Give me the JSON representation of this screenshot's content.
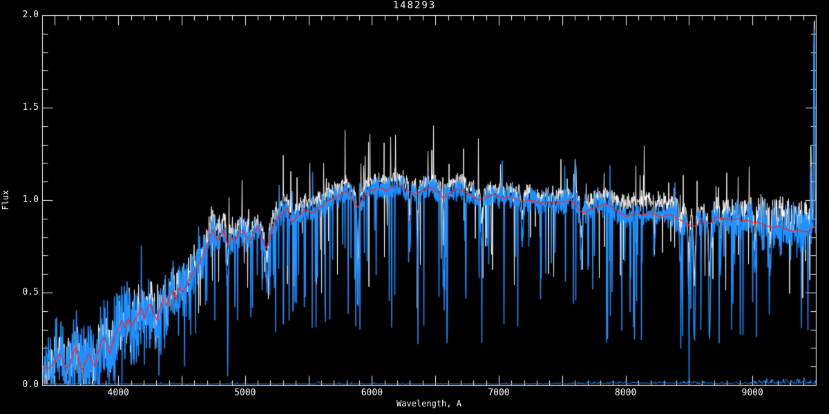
{
  "chart_data": {
    "type": "line",
    "title": "148293",
    "xlabel": "Wavelength, A",
    "ylabel": "Flux",
    "xlim": [
      3400,
      9500
    ],
    "ylim": [
      0.0,
      2.0
    ],
    "grid": false,
    "legend": "none",
    "background_color": "#000000",
    "axis_color": "#ffffff",
    "x_major_tick_step": 500,
    "x_minor_tick_step": 100,
    "y_major_tick_step": 0.5,
    "y_minor_tick_step": 0.1,
    "x_tick_labels": [
      {
        "value": 4000,
        "label": "4000"
      },
      {
        "value": 5000,
        "label": "5000"
      },
      {
        "value": 6000,
        "label": "6000"
      },
      {
        "value": 7000,
        "label": "7000"
      },
      {
        "value": 8000,
        "label": "8000"
      },
      {
        "value": 9000,
        "label": "9000"
      }
    ],
    "y_tick_labels": [
      {
        "value": 0.0,
        "label": "0.0"
      },
      {
        "value": 0.5,
        "label": "0.5"
      },
      {
        "value": 1.0,
        "label": "1.0"
      },
      {
        "value": 1.5,
        "label": "1.5"
      },
      {
        "value": 2.0,
        "label": "2.0"
      }
    ],
    "series": [
      {
        "name": "observed-spectrum",
        "color": "#ffffff",
        "line_width": 1,
        "role": "noisy",
        "seed": 101,
        "continuum_boost_base": 0.035,
        "boosts": [
          [
            8200,
            230,
            0.05
          ],
          [
            9300,
            260,
            0.05
          ],
          [
            4800,
            700,
            0.02
          ]
        ],
        "noise_base": 0.038,
        "noise_extra": [
          [
            3650,
            320,
            0.07
          ],
          [
            4250,
            350,
            0.06
          ],
          [
            9250,
            300,
            0.05
          ]
        ],
        "dip_fraction": 0.5,
        "emission_fraction": 1.15,
        "spike_down_prob": 0.04,
        "spike_down_max": 0.5,
        "spike_up_prob": 0.025,
        "spike_up_max": 0.15
      },
      {
        "name": "smoothed-spectrum",
        "color": "#1e90ff",
        "line_width": 1.5,
        "role": "noisy",
        "seed": 202,
        "continuum_boost_base": 0.0,
        "boosts": [],
        "noise_base": 0.05,
        "noise_extra": [
          [
            3650,
            320,
            0.1
          ],
          [
            4250,
            350,
            0.09
          ],
          [
            9250,
            300,
            0.06
          ]
        ],
        "dip_fraction": 1.0,
        "emission_fraction": 1.0,
        "spike_down_prob": 0.07,
        "spike_down_max": 0.75,
        "spike_up_prob": 0.01,
        "spike_up_max": 0.12
      },
      {
        "name": "sky-noise-spectrum",
        "color": "#1e90ff",
        "line_width": 1,
        "role": "baseline",
        "seed": 303,
        "level": 0.004,
        "bumps": [
          [
            5577,
            5,
            0.012
          ],
          [
            6300,
            5,
            0.007
          ],
          [
            7900,
            300,
            0.01
          ],
          [
            8450,
            200,
            0.012
          ],
          [
            9300,
            260,
            0.022
          ]
        ]
      },
      {
        "name": "template-fit",
        "color": "#ff2222",
        "line_width": 1.3,
        "role": "smooth",
        "points": [
          [
            3405,
            0.08
          ],
          [
            3430,
            0.1
          ],
          [
            3455,
            0.09
          ],
          [
            3480,
            0.11
          ],
          [
            3510,
            0.14
          ],
          [
            3540,
            0.17
          ],
          [
            3565,
            0.13
          ],
          [
            3590,
            0.09
          ],
          [
            3615,
            0.11
          ],
          [
            3640,
            0.16
          ],
          [
            3665,
            0.21
          ],
          [
            3690,
            0.13
          ],
          [
            3715,
            0.08
          ],
          [
            3740,
            0.12
          ],
          [
            3765,
            0.17
          ],
          [
            3790,
            0.13
          ],
          [
            3815,
            0.1
          ],
          [
            3840,
            0.17
          ],
          [
            3865,
            0.23
          ],
          [
            3890,
            0.26
          ],
          [
            3915,
            0.21
          ],
          [
            3933,
            0.17
          ],
          [
            3955,
            0.22
          ],
          [
            3980,
            0.28
          ],
          [
            4005,
            0.31
          ],
          [
            4030,
            0.35
          ],
          [
            4055,
            0.31
          ],
          [
            4080,
            0.36
          ],
          [
            4105,
            0.32
          ],
          [
            4130,
            0.35
          ],
          [
            4155,
            0.38
          ],
          [
            4180,
            0.42
          ],
          [
            4205,
            0.36
          ],
          [
            4230,
            0.41
          ],
          [
            4255,
            0.44
          ],
          [
            4280,
            0.39
          ],
          [
            4305,
            0.35
          ],
          [
            4330,
            0.42
          ],
          [
            4355,
            0.47
          ],
          [
            4380,
            0.43
          ],
          [
            4405,
            0.47
          ],
          [
            4430,
            0.51
          ],
          [
            4455,
            0.46
          ],
          [
            4480,
            0.53
          ],
          [
            4510,
            0.5
          ],
          [
            4540,
            0.55
          ],
          [
            4570,
            0.58
          ],
          [
            4600,
            0.62
          ],
          [
            4640,
            0.66
          ],
          [
            4680,
            0.72
          ],
          [
            4703,
            0.76
          ],
          [
            4720,
            0.8
          ],
          [
            4740,
            0.84
          ],
          [
            4760,
            0.82
          ],
          [
            4780,
            0.78
          ],
          [
            4800,
            0.8
          ],
          [
            4830,
            0.84
          ],
          [
            4861,
            0.76
          ],
          [
            4890,
            0.8
          ],
          [
            4920,
            0.78
          ],
          [
            4950,
            0.82
          ],
          [
            4980,
            0.84
          ],
          [
            5010,
            0.8
          ],
          [
            5040,
            0.78
          ],
          [
            5070,
            0.82
          ],
          [
            5100,
            0.86
          ],
          [
            5130,
            0.8
          ],
          [
            5164,
            0.74
          ],
          [
            5200,
            0.8
          ],
          [
            5230,
            0.88
          ],
          [
            5260,
            0.91
          ],
          [
            5290,
            0.92
          ],
          [
            5330,
            0.96
          ],
          [
            5370,
            0.88
          ],
          [
            5400,
            0.9
          ],
          [
            5430,
            0.92
          ],
          [
            5460,
            0.94
          ],
          [
            5490,
            0.95
          ],
          [
            5520,
            0.93
          ],
          [
            5550,
            0.94
          ],
          [
            5580,
            0.96
          ],
          [
            5610,
            0.97
          ],
          [
            5640,
            0.99
          ],
          [
            5670,
            1.0
          ],
          [
            5700,
            1.01
          ],
          [
            5730,
            1.02
          ],
          [
            5770,
            1.04
          ],
          [
            5800,
            1.05
          ],
          [
            5830,
            1.02
          ],
          [
            5860,
            0.99
          ],
          [
            5890,
            0.96
          ],
          [
            5920,
            1.0
          ],
          [
            5950,
            1.03
          ],
          [
            5990,
            1.05
          ],
          [
            6030,
            1.06
          ],
          [
            6070,
            1.07
          ],
          [
            6110,
            1.05
          ],
          [
            6150,
            1.07
          ],
          [
            6190,
            1.08
          ],
          [
            6230,
            1.08
          ],
          [
            6270,
            1.06
          ],
          [
            6310,
            1.04
          ],
          [
            6350,
            1.03
          ],
          [
            6390,
            1.05
          ],
          [
            6430,
            1.06
          ],
          [
            6470,
            1.07
          ],
          [
            6510,
            1.05
          ],
          [
            6540,
            1.03
          ],
          [
            6563,
            1.01
          ],
          [
            6600,
            1.03
          ],
          [
            6640,
            1.05
          ],
          [
            6680,
            1.06
          ],
          [
            6720,
            1.05
          ],
          [
            6760,
            1.03
          ],
          [
            6800,
            1.02
          ],
          [
            6840,
            1.0
          ],
          [
            6880,
            1.01
          ],
          [
            6920,
            1.02
          ],
          [
            6960,
            1.03
          ],
          [
            7000,
            1.02
          ],
          [
            7040,
            1.01
          ],
          [
            7080,
            1.02
          ],
          [
            7120,
            1.01
          ],
          [
            7160,
            1.0
          ],
          [
            7200,
            0.99
          ],
          [
            7240,
            1.0
          ],
          [
            7280,
            1.0
          ],
          [
            7320,
            0.98
          ],
          [
            7360,
            0.99
          ],
          [
            7400,
            0.99
          ],
          [
            7440,
            0.98
          ],
          [
            7480,
            0.99
          ],
          [
            7520,
            0.99
          ],
          [
            7560,
            1.0
          ],
          [
            7600,
            0.98
          ],
          [
            7640,
            0.94
          ],
          [
            7680,
            0.93
          ],
          [
            7720,
            0.95
          ],
          [
            7760,
            0.96
          ],
          [
            7800,
            0.97
          ],
          [
            7840,
            0.98
          ],
          [
            7880,
            0.97
          ],
          [
            7920,
            0.95
          ],
          [
            7960,
            0.93
          ],
          [
            8000,
            0.91
          ],
          [
            8040,
            0.92
          ],
          [
            8080,
            0.93
          ],
          [
            8120,
            0.92
          ],
          [
            8160,
            0.92
          ],
          [
            8200,
            0.93
          ],
          [
            8240,
            0.92
          ],
          [
            8280,
            0.91
          ],
          [
            8320,
            0.92
          ],
          [
            8360,
            0.92
          ],
          [
            8400,
            0.9
          ],
          [
            8440,
            0.89
          ],
          [
            8480,
            0.87
          ],
          [
            8520,
            0.86
          ],
          [
            8560,
            0.86
          ],
          [
            8600,
            0.9
          ],
          [
            8640,
            0.87
          ],
          [
            8680,
            0.88
          ],
          [
            8720,
            0.91
          ],
          [
            8760,
            0.9
          ],
          [
            8800,
            0.9
          ],
          [
            8840,
            0.89
          ],
          [
            8880,
            0.9
          ],
          [
            8920,
            0.89
          ],
          [
            8960,
            0.89
          ],
          [
            9000,
            0.88
          ],
          [
            9040,
            0.88
          ],
          [
            9080,
            0.87
          ],
          [
            9120,
            0.86
          ],
          [
            9160,
            0.85
          ],
          [
            9200,
            0.86
          ],
          [
            9240,
            0.85
          ],
          [
            9280,
            0.84
          ],
          [
            9320,
            0.83
          ],
          [
            9360,
            0.84
          ],
          [
            9400,
            0.83
          ],
          [
            9440,
            0.83
          ],
          [
            9480,
            0.85
          ],
          [
            9500,
            0.86
          ]
        ]
      }
    ],
    "absorption_features": [
      {
        "center": 3933,
        "sigma": 10,
        "depth": 0.4
      },
      {
        "center": 3968,
        "sigma": 9,
        "depth": 0.35
      },
      {
        "center": 4101,
        "sigma": 7,
        "depth": 0.3
      },
      {
        "center": 4226,
        "sigma": 7,
        "depth": 0.32
      },
      {
        "center": 4305,
        "sigma": 10,
        "depth": 0.28
      },
      {
        "center": 4383,
        "sigma": 7,
        "depth": 0.3
      },
      {
        "center": 4861,
        "sigma": 7,
        "depth": 0.3
      },
      {
        "center": 5172,
        "sigma": 9,
        "depth": 0.25
      },
      {
        "center": 5890,
        "sigma": 6,
        "depth": 0.55
      },
      {
        "center": 6300,
        "sigma": 5,
        "depth": 0.35
      },
      {
        "center": 6360,
        "sigma": 5,
        "depth": 0.4
      },
      {
        "center": 6563,
        "sigma": 5,
        "depth": 0.5
      },
      {
        "center": 6867,
        "sigma": 8,
        "depth": 0.3
      },
      {
        "center": 7186,
        "sigma": 7,
        "depth": 0.22
      },
      {
        "center": 7605,
        "sigma": 5,
        "depth": -0.22
      },
      {
        "center": 7650,
        "sigma": 7,
        "depth": 0.28
      },
      {
        "center": 8227,
        "sigma": 6,
        "depth": 0.22
      },
      {
        "center": 8430,
        "sigma": 6,
        "depth": 0.28
      },
      {
        "center": 8498,
        "sigma": 6,
        "depth": 0.45
      },
      {
        "center": 8542,
        "sigma": 7,
        "depth": 0.72
      },
      {
        "center": 8662,
        "sigma": 7,
        "depth": 0.7
      },
      {
        "center": 8750,
        "sigma": 5,
        "depth": 0.28
      },
      {
        "center": 9020,
        "sigma": 6,
        "depth": 0.28
      },
      {
        "center": 9140,
        "sigma": 5,
        "depth": 0.3
      },
      {
        "center": 9460,
        "sigma": 4,
        "depth": -0.3
      },
      {
        "center": 9487,
        "sigma": 4,
        "depth": -1.3
      }
    ]
  }
}
